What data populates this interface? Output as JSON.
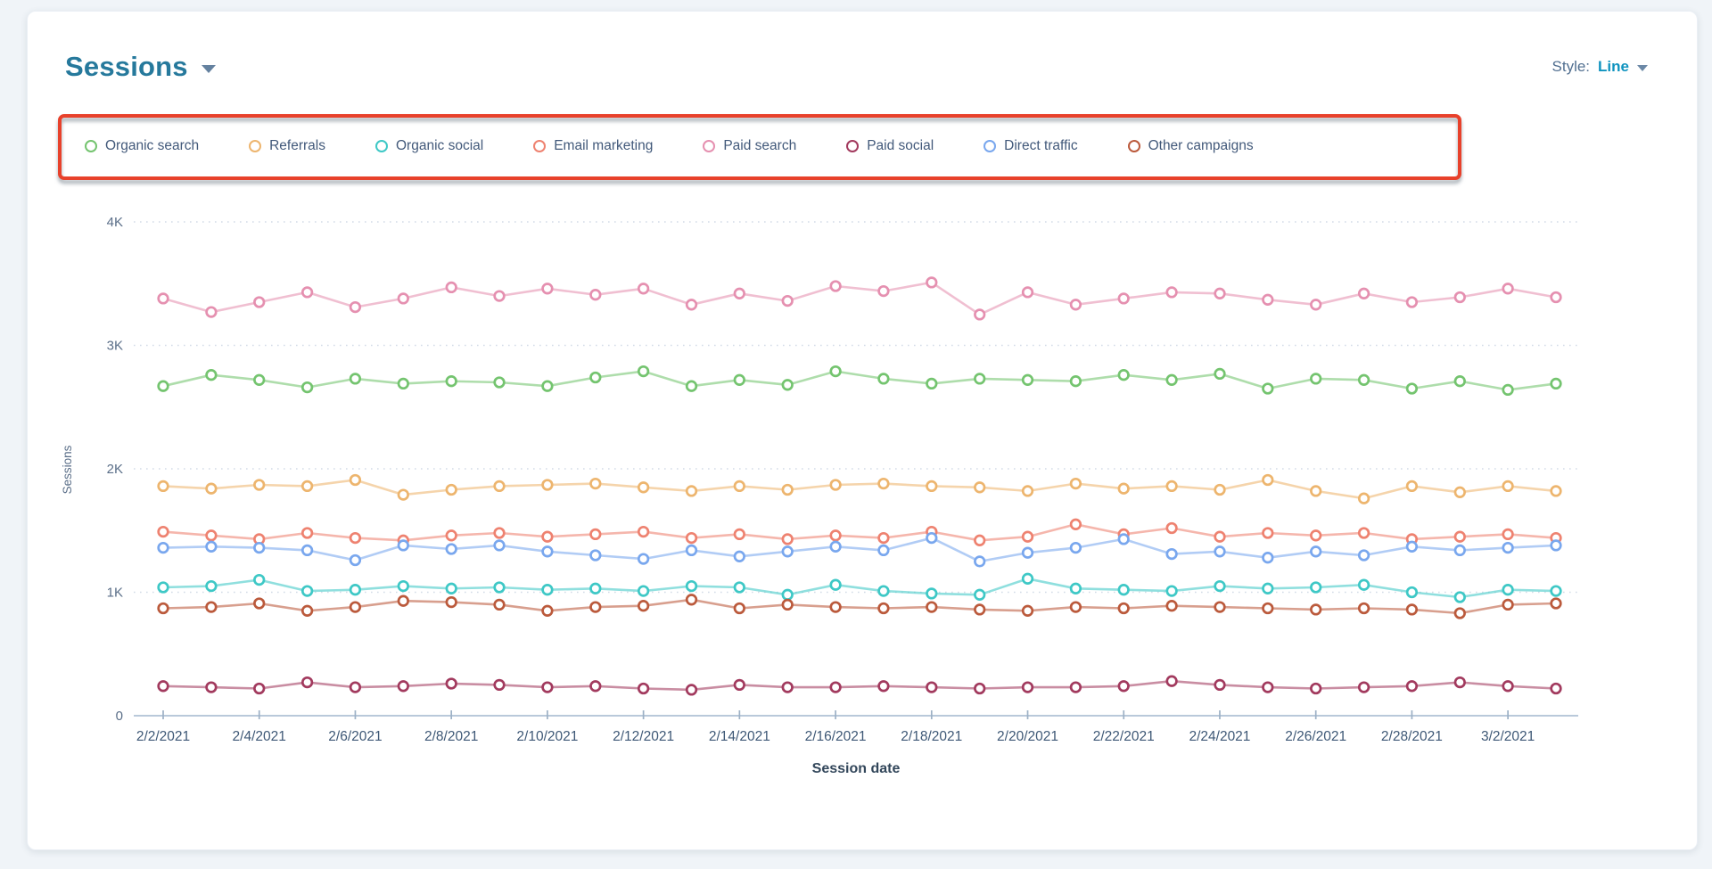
{
  "header": {
    "title": "Sessions",
    "style_label": "Style:",
    "style_value": "Line"
  },
  "icons": {
    "title_caret": "caret-down",
    "style_caret": "caret-down"
  },
  "annotation_box": {
    "color": "#e8412b"
  },
  "legend": {
    "items": [
      {
        "label": "Organic search",
        "color": "#74c46f"
      },
      {
        "label": "Referrals",
        "color": "#edb56e"
      },
      {
        "label": "Organic social",
        "color": "#3ec8c6"
      },
      {
        "label": "Email marketing",
        "color": "#ee8270"
      },
      {
        "label": "Paid search",
        "color": "#e590b0"
      },
      {
        "label": "Paid social",
        "color": "#a23a5e"
      },
      {
        "label": "Direct traffic",
        "color": "#79a7ee"
      },
      {
        "label": "Other campaigns",
        "color": "#bb5a3c"
      }
    ]
  },
  "chart_data": {
    "type": "line",
    "title": "Sessions",
    "xlabel": "Session date",
    "ylabel": "Sessions",
    "ylim": [
      0,
      4000
    ],
    "y_ticks": [
      0,
      1000,
      2000,
      3000,
      4000
    ],
    "y_tick_labels": [
      "0",
      "1K",
      "2K",
      "3K",
      "4K"
    ],
    "grid": "dotted-horizontal",
    "legend_position": "top",
    "x_tick_step": 2,
    "x": [
      "2/2/2021",
      "2/3/2021",
      "2/4/2021",
      "2/5/2021",
      "2/6/2021",
      "2/7/2021",
      "2/8/2021",
      "2/9/2021",
      "2/10/2021",
      "2/11/2021",
      "2/12/2021",
      "2/13/2021",
      "2/14/2021",
      "2/15/2021",
      "2/16/2021",
      "2/17/2021",
      "2/18/2021",
      "2/19/2021",
      "2/20/2021",
      "2/21/2021",
      "2/22/2021",
      "2/23/2021",
      "2/24/2021",
      "2/25/2021",
      "2/26/2021",
      "2/27/2021",
      "2/28/2021",
      "3/1/2021",
      "3/2/2021",
      "3/3/2021"
    ],
    "series": [
      {
        "name": "Organic search",
        "color": "#74c46f",
        "values": [
          2670,
          2760,
          2720,
          2660,
          2730,
          2690,
          2710,
          2700,
          2670,
          2740,
          2790,
          2670,
          2720,
          2680,
          2790,
          2730,
          2690,
          2730,
          2720,
          2710,
          2760,
          2720,
          2770,
          2650,
          2730,
          2720,
          2650,
          2710,
          2640,
          2690
        ]
      },
      {
        "name": "Referrals",
        "color": "#edb56e",
        "values": [
          1860,
          1840,
          1870,
          1860,
          1910,
          1790,
          1830,
          1860,
          1870,
          1880,
          1850,
          1820,
          1860,
          1830,
          1870,
          1880,
          1860,
          1850,
          1820,
          1880,
          1840,
          1860,
          1830,
          1910,
          1820,
          1760,
          1860,
          1810,
          1860,
          1820
        ]
      },
      {
        "name": "Organic social",
        "color": "#3ec8c6",
        "values": [
          1040,
          1050,
          1100,
          1010,
          1020,
          1050,
          1030,
          1040,
          1020,
          1030,
          1010,
          1050,
          1040,
          980,
          1060,
          1010,
          990,
          980,
          1110,
          1030,
          1020,
          1010,
          1050,
          1030,
          1040,
          1060,
          1000,
          960,
          1020,
          1010
        ]
      },
      {
        "name": "Email marketing",
        "color": "#ee8270",
        "values": [
          1490,
          1460,
          1430,
          1480,
          1440,
          1420,
          1460,
          1480,
          1450,
          1470,
          1490,
          1440,
          1470,
          1430,
          1460,
          1440,
          1490,
          1420,
          1450,
          1550,
          1470,
          1520,
          1450,
          1480,
          1460,
          1480,
          1430,
          1450,
          1470,
          1440
        ]
      },
      {
        "name": "Paid search",
        "color": "#e590b0",
        "values": [
          3380,
          3270,
          3350,
          3430,
          3310,
          3380,
          3470,
          3400,
          3460,
          3410,
          3460,
          3330,
          3420,
          3360,
          3480,
          3440,
          3510,
          3250,
          3430,
          3330,
          3380,
          3430,
          3420,
          3370,
          3330,
          3420,
          3350,
          3390,
          3460,
          3390
        ]
      },
      {
        "name": "Paid social",
        "color": "#a23a5e",
        "values": [
          240,
          230,
          220,
          270,
          230,
          240,
          260,
          250,
          230,
          240,
          220,
          210,
          250,
          230,
          230,
          240,
          230,
          220,
          230,
          230,
          240,
          280,
          250,
          230,
          220,
          230,
          240,
          270,
          240,
          220
        ]
      },
      {
        "name": "Direct traffic",
        "color": "#79a7ee",
        "values": [
          1360,
          1370,
          1360,
          1340,
          1260,
          1380,
          1350,
          1380,
          1330,
          1300,
          1270,
          1340,
          1290,
          1330,
          1370,
          1340,
          1440,
          1250,
          1320,
          1360,
          1430,
          1310,
          1330,
          1280,
          1330,
          1300,
          1370,
          1340,
          1360,
          1380
        ]
      },
      {
        "name": "Other campaigns",
        "color": "#bb5a3c",
        "values": [
          870,
          880,
          910,
          850,
          880,
          930,
          920,
          900,
          850,
          880,
          890,
          940,
          870,
          900,
          880,
          870,
          880,
          860,
          850,
          880,
          870,
          890,
          880,
          870,
          860,
          870,
          860,
          830,
          900,
          910
        ]
      }
    ]
  }
}
